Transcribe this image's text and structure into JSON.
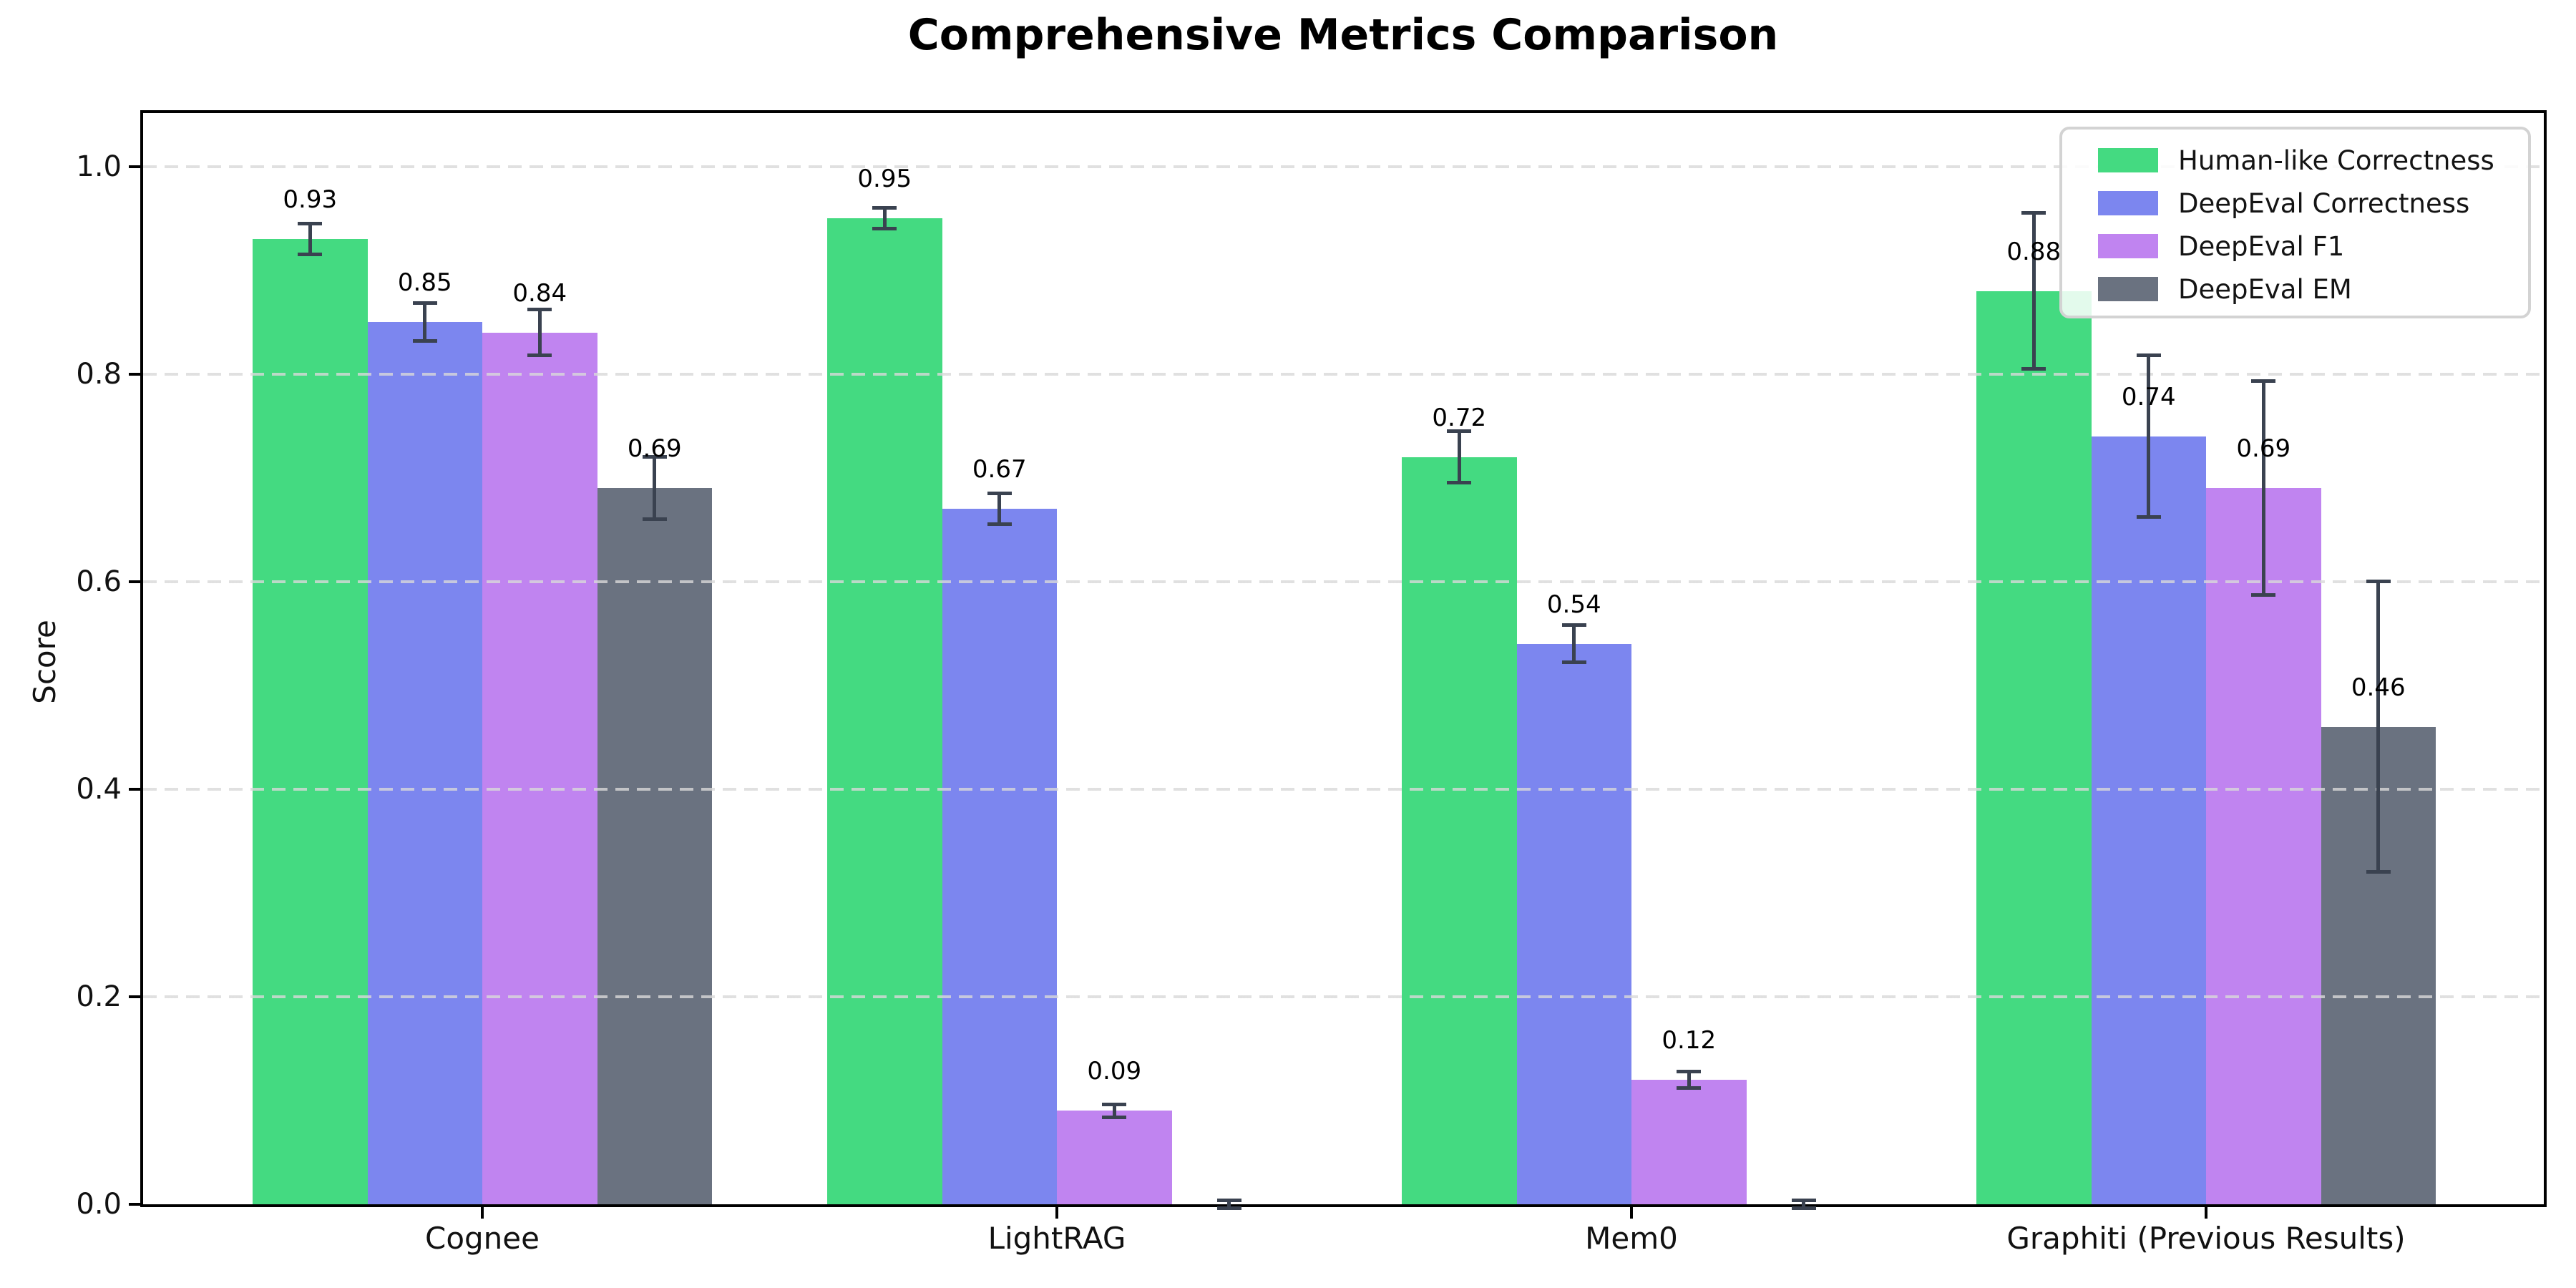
{
  "title": "Comprehensive Metrics Comparison",
  "axes": {
    "ylabel": "Score",
    "yticks": [
      "0.0",
      "0.2",
      "0.4",
      "0.6",
      "0.8",
      "1.0"
    ]
  },
  "chart_data": {
    "type": "bar",
    "title": "Comprehensive Metrics Comparison",
    "ylabel": "Score",
    "categories": [
      "Cognee",
      "LightRAG",
      "Mem0",
      "Graphiti (Previous Results)"
    ],
    "series": [
      {
        "name": "Human-like Correctness",
        "color": "#44da81",
        "values": [
          0.93,
          0.95,
          0.72,
          0.88
        ],
        "errors": [
          0.015,
          0.01,
          0.025,
          0.075
        ],
        "labels": [
          "0.93",
          "0.95",
          "0.72",
          "0.88"
        ]
      },
      {
        "name": "DeepEval Correctness",
        "color": "#7c86ef",
        "values": [
          0.85,
          0.67,
          0.54,
          0.74
        ],
        "errors": [
          0.018,
          0.015,
          0.018,
          0.078
        ],
        "labels": [
          "0.85",
          "0.67",
          "0.54",
          "0.74"
        ]
      },
      {
        "name": "DeepEval F1",
        "color": "#c084f0",
        "values": [
          0.84,
          0.09,
          0.12,
          0.69
        ],
        "errors": [
          0.022,
          0.006,
          0.008,
          0.103
        ],
        "labels": [
          "0.84",
          "0.09",
          "0.12",
          "0.69"
        ]
      },
      {
        "name": "DeepEval EM",
        "color": "#6a7280",
        "values": [
          0.69,
          0.0,
          0.0,
          0.46
        ],
        "errors": [
          0.03,
          0.004,
          0.004,
          0.14
        ],
        "labels": [
          "0.69",
          "",
          "",
          "0.46"
        ]
      }
    ],
    "ylim": [
      0.0,
      1.05
    ],
    "ytick_values": [
      0.0,
      0.2,
      0.4,
      0.6,
      0.8,
      1.0
    ],
    "grid": "horizontal-dashed",
    "legend_position": "upper right"
  },
  "colors": {
    "errorbar": "#3a4250",
    "grid": "#d9d9d9",
    "spine": "#000000",
    "background": "#ffffff",
    "legend_border": "#d3d3d3"
  }
}
